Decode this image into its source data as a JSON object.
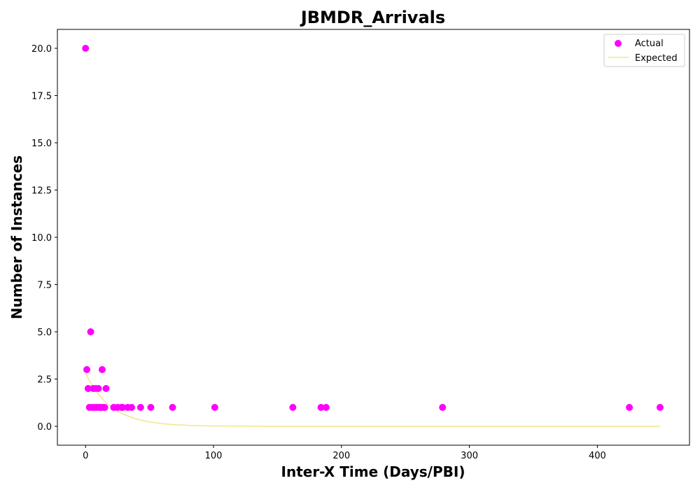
{
  "chart_data": {
    "type": "scatter",
    "title": "JBMDR_Arrivals",
    "xlabel": "Inter-X Time (Days/PBI)",
    "ylabel": "Number of Instances",
    "xlim": [
      -22,
      472
    ],
    "ylim": [
      -1.0,
      21.0
    ],
    "xticks": [
      0,
      100,
      200,
      300,
      400
    ],
    "yticks": [
      0.0,
      2.5,
      5.0,
      7.5,
      10.0,
      12.5,
      15.0,
      17.5,
      20.0
    ],
    "xtick_labels": [
      "0",
      "100",
      "200",
      "300",
      "400"
    ],
    "ytick_labels": [
      "0.0",
      "2.5",
      "5.0",
      "7.5",
      "10.0",
      "12.5",
      "15.0",
      "17.5",
      "20.0"
    ],
    "grid": false,
    "legend_position": "top-right",
    "series": [
      {
        "name": "Actual",
        "type": "scatter",
        "color": "#ff00ff",
        "x": [
          0,
          1,
          2,
          3,
          4,
          5,
          6,
          7,
          8,
          9,
          10,
          11,
          12,
          13,
          14,
          15,
          16,
          22,
          25,
          28,
          29,
          33,
          36,
          43,
          51,
          68,
          101,
          162,
          184,
          188,
          279,
          425,
          449
        ],
        "y": [
          20,
          3,
          2,
          1,
          5,
          1,
          2,
          1,
          2,
          1,
          2,
          1,
          1,
          3,
          1,
          1,
          2,
          1,
          1,
          1,
          1,
          1,
          1,
          1,
          1,
          1,
          1,
          1,
          1,
          1,
          1,
          1,
          1
        ]
      },
      {
        "name": "Expected",
        "type": "line",
        "color": "#f0e68c",
        "x": [
          0,
          5,
          10,
          15,
          20,
          25,
          30,
          40,
          50,
          60,
          70,
          80,
          90,
          100,
          120,
          140,
          160,
          200,
          250,
          300,
          350,
          400,
          449
        ],
        "y": [
          2.8,
          2.18,
          1.7,
          1.32,
          1.03,
          0.8,
          0.62,
          0.38,
          0.23,
          0.14,
          0.085,
          0.05,
          0.03,
          0.02,
          0.007,
          0.003,
          0.001,
          0.0,
          0.0,
          0.0,
          0.0,
          0.0,
          0.0
        ]
      }
    ]
  }
}
